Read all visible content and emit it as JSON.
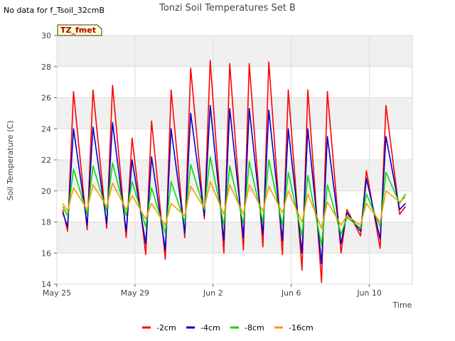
{
  "title": "Tonzi Soil Temperatures Set B",
  "no_data_note": "No data for f_Tsoil_32cmB",
  "badge_label": "TZ_fmet",
  "chart_data": {
    "type": "line",
    "title": "Tonzi Soil Temperatures Set B",
    "xlabel": "Time",
    "ylabel": "Soil Temperature (C)",
    "ylim": [
      14,
      30
    ],
    "yticks": [
      14,
      16,
      18,
      20,
      22,
      24,
      26,
      28,
      30
    ],
    "xlim_days": [
      0,
      18.2
    ],
    "xticks": [
      {
        "day": 0,
        "label": "May 25"
      },
      {
        "day": 4,
        "label": "May 29"
      },
      {
        "day": 8,
        "label": "Jun 2"
      },
      {
        "day": 12,
        "label": "Jun 6"
      },
      {
        "day": 16,
        "label": "Jun 10"
      }
    ],
    "grid": true,
    "legend_position": "bottom",
    "x_days": [
      0.3,
      0.55,
      0.85,
      1.55,
      1.85,
      2.55,
      2.85,
      3.55,
      3.85,
      4.55,
      4.85,
      5.55,
      5.85,
      6.55,
      6.85,
      7.55,
      7.85,
      8.55,
      8.85,
      9.55,
      9.85,
      10.55,
      10.85,
      11.55,
      11.85,
      12.55,
      12.85,
      13.55,
      13.85,
      14.55,
      14.85,
      15.55,
      15.85,
      16.55,
      16.85,
      17.55,
      17.85
    ],
    "series": [
      {
        "name": "-2cm",
        "color": "#ff0000",
        "values": [
          18.8,
          17.4,
          26.4,
          17.5,
          26.5,
          17.6,
          26.8,
          17.0,
          23.4,
          15.9,
          24.5,
          15.6,
          26.5,
          17.0,
          27.9,
          18.2,
          28.4,
          16.0,
          28.2,
          16.2,
          28.2,
          16.4,
          28.3,
          15.9,
          26.5,
          14.9,
          26.5,
          14.1,
          26.4,
          16.0,
          18.8,
          17.1,
          21.3,
          16.3,
          25.5,
          18.5,
          19.0
        ]
      },
      {
        "name": "-4cm",
        "color": "#0000cc",
        "values": [
          18.6,
          17.7,
          24.0,
          17.8,
          24.1,
          17.9,
          24.4,
          17.4,
          22.0,
          16.6,
          22.2,
          16.2,
          24.0,
          17.3,
          25.0,
          18.4,
          25.5,
          16.8,
          25.3,
          17.0,
          25.3,
          17.2,
          25.2,
          16.8,
          24.0,
          16.0,
          24.0,
          15.3,
          23.5,
          16.6,
          18.6,
          17.4,
          20.8,
          16.9,
          23.5,
          18.8,
          19.2
        ]
      },
      {
        "name": "-8cm",
        "color": "#00dd00",
        "values": [
          19.0,
          18.4,
          21.4,
          18.5,
          21.6,
          18.7,
          21.8,
          18.4,
          20.6,
          17.7,
          20.2,
          17.3,
          20.6,
          18.0,
          21.7,
          18.8,
          22.2,
          17.8,
          21.6,
          17.9,
          21.9,
          18.0,
          22.0,
          17.8,
          21.2,
          17.1,
          21.0,
          16.5,
          20.4,
          17.2,
          18.3,
          17.6,
          19.8,
          17.7,
          21.2,
          19.2,
          19.8
        ]
      },
      {
        "name": "-16cm",
        "color": "#ff9900",
        "values": [
          19.2,
          18.7,
          20.2,
          18.8,
          20.4,
          19.0,
          20.5,
          18.8,
          19.7,
          18.2,
          19.2,
          17.8,
          19.2,
          18.4,
          20.3,
          18.9,
          20.6,
          18.5,
          20.4,
          18.5,
          20.4,
          18.7,
          20.3,
          18.6,
          20.0,
          18.0,
          19.8,
          17.6,
          19.3,
          17.8,
          18.4,
          17.8,
          19.2,
          18.0,
          20.0,
          19.3,
          19.6
        ]
      }
    ]
  }
}
